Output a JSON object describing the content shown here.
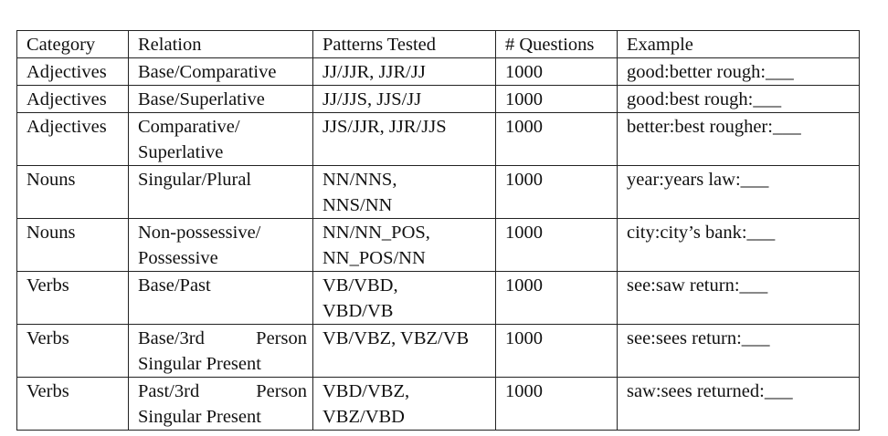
{
  "table": {
    "headers": [
      "Category",
      "Relation",
      "Patterns Tested",
      "# Questions",
      "Example"
    ],
    "rows": [
      {
        "category": "Adjectives",
        "relation": [
          "Base/Comparative"
        ],
        "patterns": [
          "JJ/JJR, JJR/JJ"
        ],
        "questions": "1000",
        "example": "good:better rough:___"
      },
      {
        "category": "Adjectives",
        "relation": [
          "Base/Superlative"
        ],
        "patterns": [
          "JJ/JJS, JJS/JJ"
        ],
        "questions": "1000",
        "example": "good:best rough:___"
      },
      {
        "category": "Adjectives",
        "relation": [
          "Comparative/",
          "Superlative"
        ],
        "patterns": [
          "JJS/JJR, JJR/JJS"
        ],
        "questions": "1000",
        "example": "better:best rougher:___"
      },
      {
        "category": "Nouns",
        "relation": [
          "Singular/Plural"
        ],
        "patterns": [
          "NN/NNS,",
          "NNS/NN"
        ],
        "questions": "1000",
        "example": "year:years law:___"
      },
      {
        "category": "Nouns",
        "relation": [
          "Non-possessive/",
          "Possessive"
        ],
        "patterns": [
          "NN/NN_POS,",
          "NN_POS/NN"
        ],
        "questions": "1000",
        "example": "city:city’s bank:___"
      },
      {
        "category": "Verbs",
        "relation": [
          "Base/Past"
        ],
        "patterns": [
          "VB/VBD,",
          "VBD/VB"
        ],
        "questions": "1000",
        "example": "see:saw return:___"
      },
      {
        "category": "Verbs",
        "relation": [
          "Base/3rd Person",
          "Singular Present"
        ],
        "patterns": [
          "VB/VBZ, VBZ/VB"
        ],
        "questions": "1000",
        "example": "see:sees return:___"
      },
      {
        "category": "Verbs",
        "relation": [
          "Past/3rd Person",
          "Singular Present"
        ],
        "patterns": [
          "VBD/VBZ,",
          "VBZ/VBD"
        ],
        "questions": "1000",
        "example": "saw:sees returned:___"
      }
    ]
  }
}
